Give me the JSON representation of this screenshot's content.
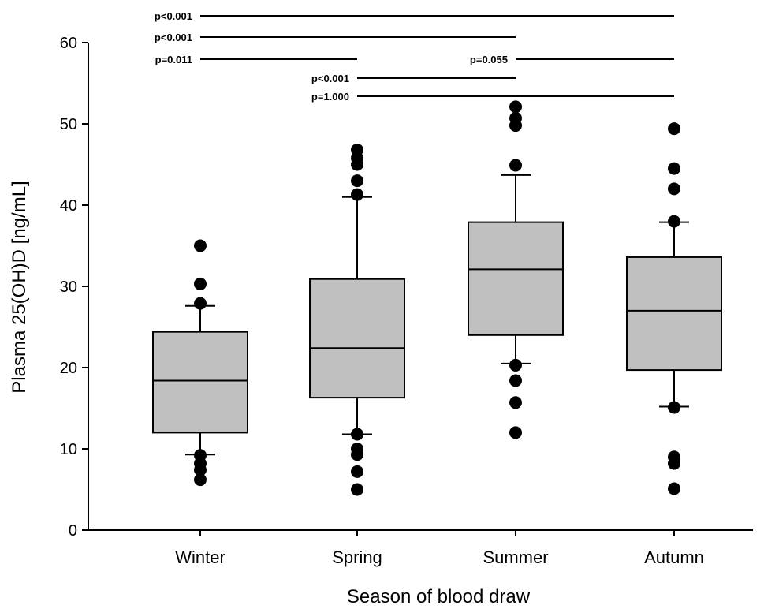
{
  "chart_data": {
    "type": "box",
    "title": "",
    "xlabel": "Season of blood draw",
    "ylabel": "Plasma 25(OH)D [ng/mL]",
    "ylim": [
      0,
      60
    ],
    "yticks": [
      "0",
      "10",
      "20",
      "30",
      "40",
      "50",
      "60"
    ],
    "grid": false,
    "legend": "none",
    "box_fill": "#c0c0c0",
    "categories": [
      "Winter",
      "Spring",
      "Summer",
      "Autumn"
    ],
    "boxes": [
      {
        "category": "Winter",
        "whisker_low": 9.3,
        "q1": 12.0,
        "median": 18.4,
        "q3": 24.4,
        "whisker_high": 27.6,
        "outliers": [
          6.2,
          7.4,
          8.2,
          9.2,
          27.9,
          30.3,
          35.0
        ]
      },
      {
        "category": "Spring",
        "whisker_low": 11.8,
        "q1": 16.3,
        "median": 22.4,
        "q3": 30.9,
        "whisker_high": 41.0,
        "outliers": [
          5.0,
          7.2,
          9.3,
          10.0,
          11.8,
          41.3,
          43.0,
          45.0,
          45.8,
          46.8
        ]
      },
      {
        "category": "Summer",
        "whisker_low": 20.5,
        "q1": 24.0,
        "median": 32.1,
        "q3": 37.9,
        "whisker_high": 43.7,
        "outliers": [
          12.0,
          15.7,
          18.4,
          20.3,
          44.9,
          49.8,
          50.7,
          52.1
        ]
      },
      {
        "category": "Autumn",
        "whisker_low": 15.2,
        "q1": 19.7,
        "median": 27.0,
        "q3": 33.6,
        "whisker_high": 37.9,
        "outliers": [
          5.1,
          8.2,
          9.0,
          15.1,
          38.0,
          42.0,
          44.5,
          49.4
        ]
      }
    ],
    "significance": [
      {
        "label": "p<0.001",
        "from": "Winter",
        "to": "Autumn"
      },
      {
        "label": "p<0.001",
        "from": "Winter",
        "to": "Summer"
      },
      {
        "label": "p=0.011",
        "from": "Winter",
        "to": "Spring"
      },
      {
        "label": "p=0.055",
        "from": "Summer",
        "to": "Autumn"
      },
      {
        "label": "p<0.001",
        "from": "Spring",
        "to": "Summer"
      },
      {
        "label": "p=1.000",
        "from": "Spring",
        "to": "Autumn"
      }
    ]
  }
}
